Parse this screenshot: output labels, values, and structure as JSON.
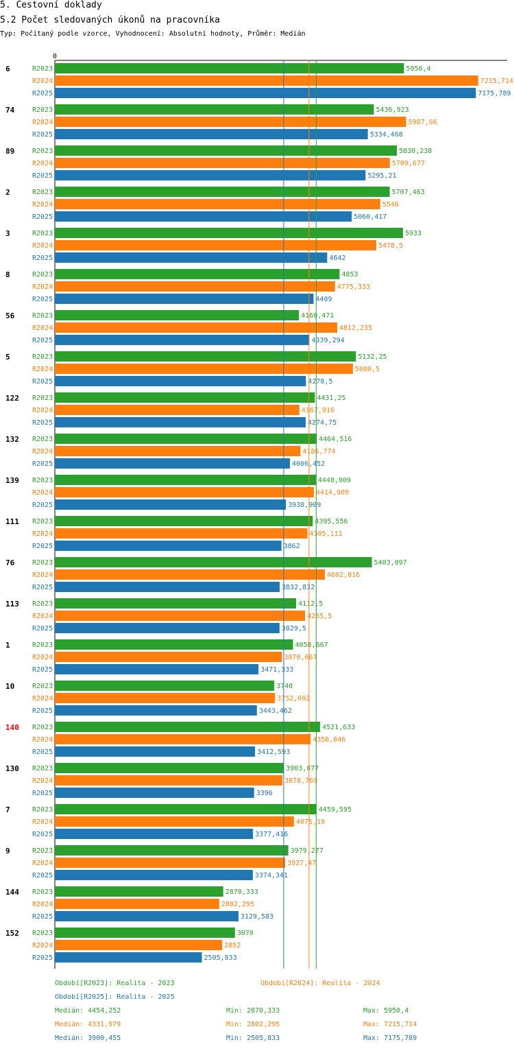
{
  "header": {
    "title": "5. Cestovní doklady",
    "subtitle": "5.2 Počet sledovaných úkonů na pracovníka",
    "info": "Typ: Počítaný podle vzorce, Vyhodnocení: Absolutní hodnoty, Průměr: Medián"
  },
  "colors": {
    "R2023": "#2ca02c",
    "R2024": "#ff7f0e",
    "R2025": "#1f77b4",
    "highlight": "#ff0000"
  },
  "chart_data": {
    "type": "bar",
    "orientation": "horizontal",
    "xlim": [
      0,
      7300
    ],
    "x_tick_labels": [
      "0"
    ],
    "series_names": [
      "R2023",
      "R2024",
      "R2025"
    ],
    "categories": [
      {
        "label": "6",
        "values": [
          "5950,4",
          "7215,714",
          "7175,789"
        ]
      },
      {
        "label": "74",
        "values": [
          "5436,923",
          "5987,66",
          "5334,468"
        ]
      },
      {
        "label": "89",
        "values": [
          "5830,238",
          "5709,677",
          "5295,21"
        ]
      },
      {
        "label": "2",
        "values": [
          "5707,463",
          "5546",
          "5060,417"
        ]
      },
      {
        "label": "3",
        "values": [
          "5933",
          "5478,5",
          "4642"
        ]
      },
      {
        "label": "8",
        "values": [
          "4853",
          "4775,333",
          "4409"
        ]
      },
      {
        "label": "56",
        "values": [
          "4160,471",
          "4812,235",
          "4339,294"
        ]
      },
      {
        "label": "5",
        "values": [
          "5132,25",
          "5080,5",
          "4278,5"
        ]
      },
      {
        "label": "122",
        "values": [
          "4431,25",
          "4167,916",
          "4274,75"
        ]
      },
      {
        "label": "132",
        "values": [
          "4464,516",
          "4186,774",
          "4006,452"
        ]
      },
      {
        "label": "139",
        "values": [
          "4448,909",
          "4414,909",
          "3938,909"
        ]
      },
      {
        "label": "111",
        "values": [
          "4395,556",
          "4305,111",
          "3862"
        ]
      },
      {
        "label": "76",
        "values": [
          "5403,097",
          "4602,016",
          "3832,832"
        ]
      },
      {
        "label": "113",
        "values": [
          "4112,5",
          "4265,5",
          "3829,5"
        ]
      },
      {
        "label": "1",
        "values": [
          "4058,667",
          "3870,667",
          "3471,333"
        ]
      },
      {
        "label": "10",
        "values": [
          "3740",
          "3752,692",
          "3443,462"
        ]
      },
      {
        "label": "140",
        "values": [
          "4521,633",
          "4358,846",
          "3412,593"
        ],
        "highlight": true
      },
      {
        "label": "130",
        "values": [
          "3903,077",
          "3878,769",
          "3396"
        ]
      },
      {
        "label": "7",
        "values": [
          "4459,595",
          "4075,19",
          "3377,416"
        ]
      },
      {
        "label": "9",
        "values": [
          "3979,277",
          "3927,47",
          "3374,341"
        ]
      },
      {
        "label": "144",
        "values": [
          "2870,333",
          "2802,295",
          "3129,583"
        ]
      },
      {
        "label": "152",
        "values": [
          "3070",
          "2852",
          "2505,833"
        ]
      }
    ],
    "median_lines": {
      "R2023": 4454.252,
      "R2024": 4331.979,
      "R2025": 3900.455
    }
  },
  "legend": {
    "period_2023": "Období[R2023]: Realita - 2023",
    "period_2024": "Období[R2024]: Realita - 2024",
    "period_2025": "Období[R2025]: Realita - 2025",
    "stats": [
      {
        "median": "Medián: 4454,252",
        "min": "Min: 2870,333",
        "max": "Max: 5950,4"
      },
      {
        "median": "Medián: 4331,979",
        "min": "Min: 2802,295",
        "max": "Max: 7215,714"
      },
      {
        "median": "Medián: 3900,455",
        "min": "Min: 2505,833",
        "max": "Max: 7175,789"
      }
    ]
  }
}
